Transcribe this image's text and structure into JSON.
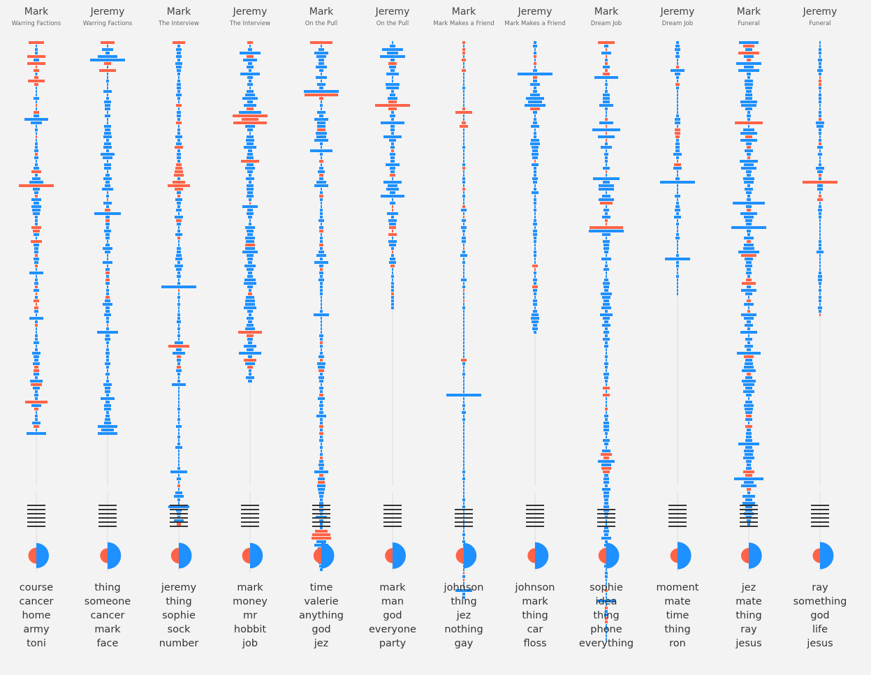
{
  "colors": {
    "mark": "#ff6347",
    "jeremy": "#1e90ff",
    "axis": "#dddddd",
    "lines": "#333333"
  },
  "chart_data": {
    "type": "bar",
    "title": "",
    "description": "Per-episode per-speaker dialogue profile: sequence of utterance bars (red = Mark, blue = Jeremy), width ~ utterance length; line glyph; split-circle share; top words",
    "columns": [
      {
        "speaker": "Mark",
        "episode": "Warring Factions",
        "mark_share": 0.42,
        "line_count": 6,
        "top_words": [
          "course",
          "cancer",
          "home",
          "army",
          "toni"
        ],
        "bars": "MJJJMJMMMJMMMJJJJJMJMJJJJJJMJJJJMJJJJMJJJMJJMJJJJJJJJMMJJMJJJMJJMJJJJJMJMJMMMJJJJMJJJJJJJJJJJMMJJJMJJJJMJMJJJJMJJMJJJJMJJJJJJMMJJJMJJMMJMJJJMMJJMJJJJM",
        "lens": "22,2,4,4,26,8,26,2,8,3,6,24,6,2,2,2,8,2,2,2,8,8,34,16,2,4,2,2,2,4,4,6,4,6,2,4,8,14,4,12,20,50,10,6,4,14,8,14,12,10,4,4,4,14,10,8,2,16,8,6,6,4,8,6,4,2,20,2,4,6,4,8,2,4,8,2,6,6,2,20,4,4,2,2,4,4,8,2,4,12,8,6,10,6,8,8,4,18,16,10,4,6,4,32,14,6,2,4,4,12,8,2,28"
      },
      {
        "speaker": "Jeremy",
        "episode": "Warring Factions",
        "mark_share": 0.3,
        "line_count": 6,
        "top_words": [
          "thing",
          "someone",
          "cancer",
          "mark",
          "face"
        ],
        "bars": "MJJJJJMJMJJJJJJJJJJJJJJJJJJJJJJJJJJJJJJJJJJJJMJJMJJMJJJJJJJJJJJJJJMJMJJJJMJJJJJJJMJJJJJJJJJJJJJJJJJJJJJJJJJJJJJJJJJJ",
        "lens": "20,2,16,6,28,50,10,2,24,2,2,4,2,2,12,2,4,10,8,8,2,8,2,2,10,8,10,12,4,10,12,4,20,14,2,10,10,2,6,12,6,8,16,2,4,2,12,4,8,38,6,6,6,4,10,6,6,2,6,14,8,2,2,14,2,6,6,4,6,6,2,4,4,6,8,14,6,6,10,4,4,2,4,30,6,8,4,2,4,6,4,4,8,4,2,6,2,4,12,8,8,4,20,6,10,10,4,6,8,10,28,18,28"
      },
      {
        "speaker": "Mark",
        "episode": "The Interview",
        "mark_share": 0.38,
        "line_count": 6,
        "top_words": [
          "jeremy",
          "thing",
          "sophie",
          "sock",
          "number"
        ],
        "bars": "MJJJJJJJJJJJJJJJJJMJJJJMJJJJJJMJJJJMMMMJMMMJMJJJJJJMJJJJMJJJJJJJJJJJJJJMJJJJJJJJJJJJJJJMJJMJJMJJJJJJJJJJJJJJJJJJJJJJJJJJJJJJJJJMJJJJJJJJJJM",
        "lens": "18,4,8,6,8,4,10,8,6,4,2,4,6,6,4,8,4,2,8,2,6,6,4,8,2,4,4,10,4,8,12,4,6,6,4,8,10,12,14,4,18,32,12,6,4,10,6,4,8,2,12,8,6,2,4,10,4,2,2,6,6,8,10,4,12,8,4,6,2,4,50,2,2,4,2,4,2,2,4,4,6,2,4,2,4,2,12,30,8,18,6,6,4,6,8,4,2,4,20,2,2,2,2,2,2,4,2,2,4,2,8,2,2,4,2,4,10,2,2,2,2,2,4,24,2,6,2,4,2,10,14,4,2,30,8,6,4,14,6,8,10"
      },
      {
        "speaker": "Jeremy",
        "episode": "The Interview",
        "mark_share": 0.4,
        "line_count": 6,
        "top_words": [
          "mark",
          "money",
          "mr",
          "hobbit",
          "job"
        ],
        "bars": "MJJJMJJJJJJJJJJJJJJMJMMMJJJJJJJJJJMJJJJJJJJJJJMJJJJJJJJJJJMJJJJJJJJJJJJJMJJJJJJJJJJMMJJJJJJMJMJJJJ",
        "lens": "8,2,6,30,10,20,6,10,4,28,8,4,8,2,10,14,22,8,18,10,32,50,24,48,14,8,2,10,12,10,18,6,8,10,26,10,14,8,4,12,4,10,10,8,10,4,2,22,8,10,6,2,4,14,10,8,14,12,14,14,22,10,8,6,16,10,6,8,16,18,8,4,6,12,14,14,18,8,4,10,6,10,14,34,10,8,6,18,10,32,6,18,14,8,4,4,12,6,4,4"
      },
      {
        "speaker": "Mark",
        "episode": "On the Pull",
        "mark_share": 0.38,
        "line_count": 6,
        "top_words": [
          "time",
          "valerie",
          "anything",
          "god",
          "jez"
        ],
        "bars": "MJJJJJJJJJJJJJJMMJJJJJJJJMJJJJJJJJMJJJMJJJJJMJJJJJJJJJMJJJMJJJJJJMJJJJJJJJJJJJJJJJJJJJMJJJJMJJMJJJJJJMJJJJJJJJMJMJJJJJJMJJJJMJMJJJJJJJJJJJJJMMMJJJJJJJJJJ",
        "lens": "32,2,8,20,14,8,8,16,6,2,16,2,12,6,50,48,6,2,4,2,12,6,20,12,12,12,16,14,20,4,2,32,4,2,6,2,6,10,6,6,14,20,2,4,6,4,2,2,4,4,4,8,2,6,6,2,4,4,6,4,8,14,4,20,6,4,6,4,8,4,4,4,4,2,2,2,2,4,22,2,2,2,2,2,6,4,4,4,2,4,8,4,12,10,8,4,8,6,2,6,4,6,10,4,6,4,6,14,4,4,6,4,6,4,6,2,4,2,4,4,6,8,6,20,6,10,10,12,10,8,6,4,6,6,6,4,16,6,4,4,18,26,28,14,20,10,14,12,8,8,6,4"
      },
      {
        "speaker": "Jeremy",
        "episode": "On the Pull",
        "mark_share": 0.32,
        "line_count": 6,
        "top_words": [
          "mark",
          "man",
          "god",
          "everyone",
          "party"
        ],
        "bars": "JJJJJJMJJJJJJJJJJMMMJJJJJJJJJJJMJJJJJJMJJJJJJJJMMJJJJMMMJJJJMJJJMJJJJJJJMJJJJ",
        "lens": "2,8,30,16,36,6,12,10,6,18,2,2,20,18,4,8,14,12,50,12,4,8,4,34,6,6,4,26,10,4,6,4,8,6,6,20,8,6,8,2,26,14,18,8,34,2,8,2,2,16,4,12,10,10,2,12,2,12,10,4,2,4,8,10,6,2,2,4,2,4,4,4,4,4,4,4,4,4"
      },
      {
        "speaker": "Mark",
        "episode": "Mark Makes a Friend",
        "mark_share": 0.4,
        "line_count": 5,
        "top_words": [
          "johnson",
          "thing",
          "jez",
          "nothing",
          "gay"
        ],
        "bars": "MJMMJMJJMJJJJJJJJJJMMJJMMJJJJJJJJJJJMJJJJJMJJJJMJJMJJJJJJJJMJJJJJJJJJJJMJJMJJJJJJJJJJJJJJJJMJJJJJJJJJJJJJJJJJJJJJJJJJJJJJJJJJJJJJJJJJJJJJJJJJJJJJJMJJJJJMJMJJJJJ",
        "lens": "4,2,4,4,2,6,2,2,6,2,2,2,2,4,2,2,2,2,2,4,24,2,2,6,12,2,2,2,2,2,4,2,2,2,2,4,4,2,2,4,4,2,4,2,4,2,2,4,8,2,2,6,2,8,4,2,6,6,2,2,4,10,2,4,2,2,2,2,8,2,4,2,2,2,2,2,4,2,2,2,2,2,2,2,2,2,2,2,2,2,2,8,4,2,2,4,2,2,2,2,2,50,2,2,4,2,6,2,4,2,2,2,2,2,2,2,2,2,2,2,2,2,2,4,2,4,2,2,2,2,2,4,2,4,2,2,2,2,2,2,2,4,2,4,2,2,2,8,2,4,2,2,2,4,2,2,2,24,4,4,2,2,2,2,2"
      },
      {
        "speaker": "Jeremy",
        "episode": "Mark Makes a Friend",
        "mark_share": 0.3,
        "line_count": 6,
        "top_words": [
          "johnson",
          "mark",
          "thing",
          "car",
          "floss"
        ],
        "bars": "JJJJMJMJJJMJJJJJJJJMJJJJJJJJJJJJJJMJJJJJJJJJJJJJJJJJJJJJJJJJJJJJMMJJJJMJJJJJJJJJJJJJ",
        "lens": "4,6,2,4,4,2,4,2,6,50,6,6,14,4,6,14,26,20,30,14,6,2,4,6,12,2,4,4,12,14,10,8,10,8,2,10,4,4,4,8,6,2,4,10,2,4,4,2,4,2,2,4,6,2,6,6,4,4,2,2,4,4,2,2,8,2,4,2,6,4,8,6,4,2,6,6,2,6,10,12,10,6,8,4,4,6,10,12,8,6,4"
      },
      {
        "speaker": "Mark",
        "episode": "Dream Job",
        "mark_share": 0.38,
        "line_count": 5,
        "top_words": [
          "sophie",
          "idea",
          "thing",
          "phone",
          "everything"
        ],
        "bars": "MJMJMJMJMMJJJJJJJJJJJJMJMJMJMJJJJJJJJMJJJJJJJJMJJJJMMMJJJJJJJJJJJJJJJJJJJJJJJJJJJJJJJJJJJJJJJJJJJJJMJMJJJMJJJJJJJJJJJJMMJJMMJJJJJJJJJJJJJJJJJJJJJJJJJJJJJJJJJMJJJJMJJMMJJJJJ",
        "lens": "24,6,2,14,2,4,4,10,4,10,34,2,4,2,4,10,10,10,20,4,2,2,4,20,2,40,2,24,2,4,16,2,6,4,4,2,10,2,2,38,10,22,22,2,12,22,18,2,8,4,12,4,2,48,50,12,2,10,8,8,6,2,14,2,4,8,2,2,6,10,8,6,16,12,8,10,14,4,18,10,6,12,4,8,4,10,4,6,2,2,4,2,6,4,2,8,6,4,2,10,2,10,2,2,2,4,2,6,4,8,8,8,4,2,10,6,2,12,16,8,24,14,14,10,6,8,8,4,12,8,8,6,6,8,8,6,4,2,2,6,8,6,14,4,6,2,4,2,2,4,6,2,4,4,2,2,2,4,2,2,26,2,4,4,6,4,4,2,4,2,2,2,4,2,2,2,2,10,2,2,2,2,2,4,2,4"
      },
      {
        "speaker": "Jeremy",
        "episode": "Dream Job",
        "mark_share": 0.26,
        "line_count": 6,
        "top_words": [
          "moment",
          "mate",
          "time",
          "thing",
          "ron"
        ],
        "bars": "JJJJJJJMJJJJMJJJJJJJJJJJJMMMJJJJJJMMJJJJJJJJJJJJJJJJJJJJJJJJJJJJJJJJJJJJJ",
        "lens": "4,6,8,4,6,2,2,4,20,8,4,2,6,4,2,2,2,2,2,2,2,4,8,8,2,8,8,6,4,6,6,6,12,4,2,10,12,2,2,6,50,2,2,2,8,2,4,6,8,4,10,2,4,2,2,4,6,2,2,2,2,4,36,4,4,2,2,4,2,2,2,2,2,2,2"
      },
      {
        "speaker": "Mark",
        "episode": "Funeral",
        "mark_share": 0.35,
        "line_count": 6,
        "top_words": [
          "jez",
          "mate",
          "thing",
          "ray",
          "jesus"
        ],
        "bars": "JMJMJMJJJJJJJJJJJJJJJJJMJJJMJJMJJMJJJJJJJJJJJJJJMJJJJJJJJMJJJMJJJJJJMMJJJJMJJMJJJJJJJJJJJJMJJJJMJJJJJJJJJJJMJJMJJJJJJJJJJJJMMJJJMJJJJJJJJJJ",
        "lens": "28,16,10,30,14,6,36,14,30,6,4,12,12,10,8,10,10,24,22,10,4,6,4,40,2,16,24,10,24,8,6,12,6,4,26,14,22,8,6,16,14,4,12,8,4,6,46,8,6,24,14,10,8,50,6,4,14,6,14,16,30,22,12,8,10,6,8,4,8,20,6,22,10,2,6,14,2,4,22,14,6,12,4,24,2,10,4,12,6,34,14,10,12,14,20,6,10,20,16,10,16,8,2,10,14,12,10,8,10,2,10,6,8,8,10,30,10,14,12,16,8,6,8,16,10,42,14,22,6,4,18,10,18,10,10,14,8,6,4,6,4"
      },
      {
        "speaker": "Jeremy",
        "episode": "Funeral",
        "mark_share": 0.28,
        "line_count": 6,
        "top_words": [
          "ray",
          "something",
          "god",
          "life",
          "jesus"
        ],
        "bars": "JJJJJJJJJJMMMJJJJJJJJJMJJJJJJMJJJJJJJJMJMJJJMMJJJJJJJJJJJJJJJJJJJJJJJJJJJJJJJJM",
        "lens": "2,2,4,4,2,6,4,4,8,4,2,4,4,4,2,4,4,4,2,2,4,4,4,12,10,4,4,2,4,4,8,2,6,2,2,4,12,8,4,4,50,8,8,2,4,8,2,4,6,4,4,2,2,2,2,2,2,4,4,4,10,2,2,2,2,2,4,6,6,4,2,4,2,4,4,2,6,4,2,6"
      }
    ]
  }
}
